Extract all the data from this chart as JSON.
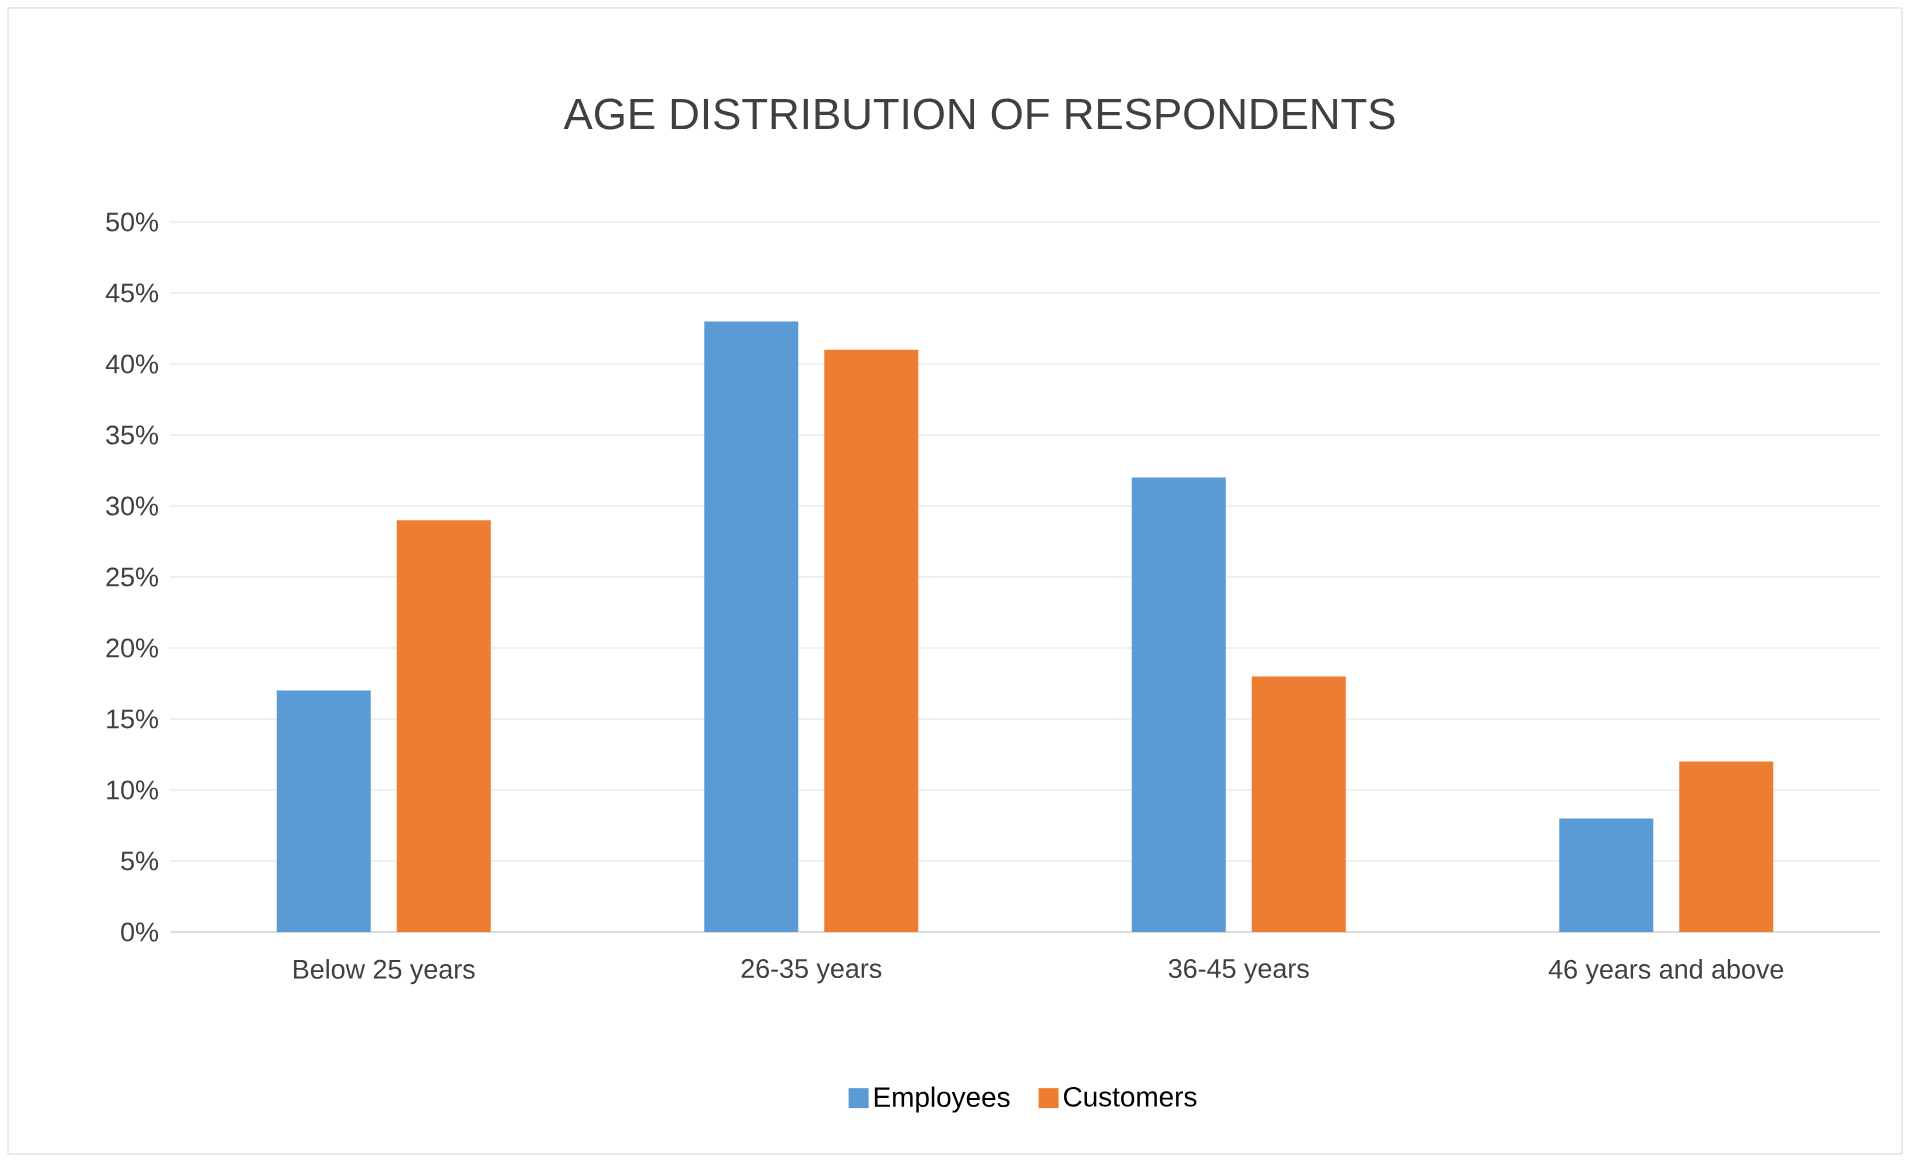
{
  "chart_data": {
    "type": "bar",
    "title": "AGE DISTRIBUTION OF RESPONDENTS",
    "categories": [
      "Below 25 years",
      "26-35 years",
      "36-45 years",
      "46 years and above"
    ],
    "series": [
      {
        "name": "Employees",
        "color": "#5b9bd5",
        "values": [
          17,
          43,
          32,
          8
        ]
      },
      {
        "name": "Customers",
        "color": "#ed7d31",
        "values": [
          29,
          41,
          18,
          12
        ]
      }
    ],
    "ylim": [
      0,
      50
    ],
    "yticks": [
      {
        "value": 0,
        "label": "0%"
      },
      {
        "value": 5,
        "label": "5%"
      },
      {
        "value": 10,
        "label": "10%"
      },
      {
        "value": 15,
        "label": "15%"
      },
      {
        "value": 20,
        "label": "20%"
      },
      {
        "value": 25,
        "label": "25%"
      },
      {
        "value": 30,
        "label": "30%"
      },
      {
        "value": 35,
        "label": "35%"
      },
      {
        "value": 40,
        "label": "40%"
      },
      {
        "value": 45,
        "label": "45%"
      },
      {
        "value": 50,
        "label": "50%"
      }
    ],
    "grid": "y",
    "legend": "bottom"
  }
}
